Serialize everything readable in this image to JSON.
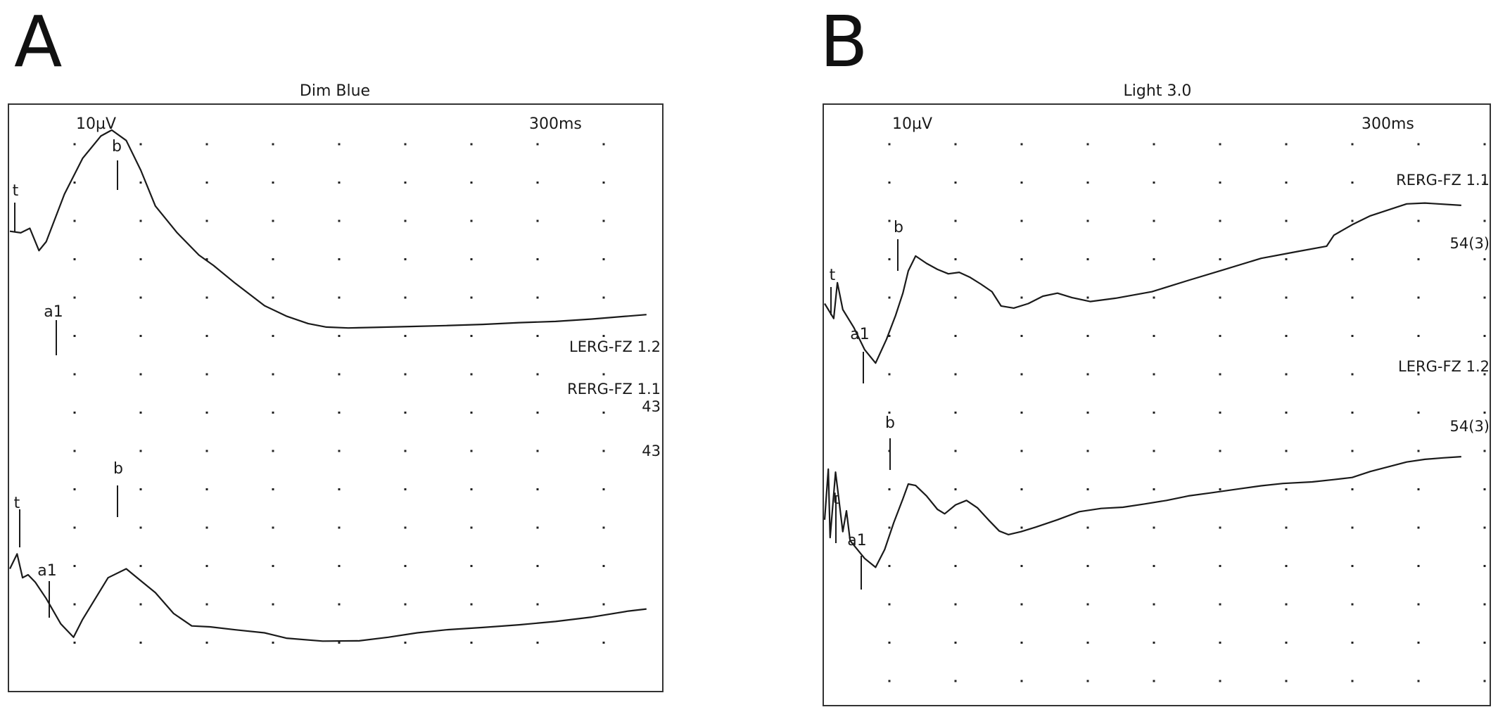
{
  "panels": {
    "a": {
      "letter": "A",
      "title": "Dim Blue"
    },
    "b": {
      "letter": "B",
      "title": "Light 3.0"
    }
  },
  "colors": {
    "trace": "#1a1a1a",
    "grid_dot": "#222222",
    "frame": "#333333"
  },
  "chart_data": [
    {
      "type": "line",
      "title": "Dim Blue",
      "scale_amplitude": "10µV",
      "scale_time": "300ms",
      "grid": "dotted",
      "labels": [
        "LERG-FZ 1.2",
        "RERG-FZ 1.1",
        "43",
        "43"
      ],
      "series": [
        {
          "markers": [
            "t",
            "a1",
            "b"
          ],
          "points": [
            [
              0,
              0.55
            ],
            [
              0.3,
              0.5
            ],
            [
              0.55,
              0.65
            ],
            [
              0.8,
              -0.1
            ],
            [
              1,
              0.2
            ],
            [
              1.5,
              1.8
            ],
            [
              2,
              3.0
            ],
            [
              2.5,
              3.75
            ],
            [
              2.8,
              3.95
            ],
            [
              3.2,
              3.6
            ],
            [
              3.6,
              2.6
            ],
            [
              4,
              1.4
            ],
            [
              4.6,
              0.5
            ],
            [
              5.2,
              -0.25
            ],
            [
              5.6,
              -0.6
            ],
            [
              6.2,
              -1.2
            ],
            [
              7,
              -1.95
            ],
            [
              7.6,
              -2.3
            ],
            [
              8.2,
              -2.55
            ],
            [
              8.7,
              -2.67
            ],
            [
              9.3,
              -2.7
            ],
            [
              10,
              -2.68
            ],
            [
              11,
              -2.65
            ],
            [
              12,
              -2.62
            ],
            [
              13,
              -2.58
            ],
            [
              14,
              -2.52
            ],
            [
              15,
              -2.48
            ],
            [
              16,
              -2.4
            ],
            [
              17,
              -2.3
            ],
            [
              17.5,
              -2.25
            ]
          ]
        },
        {
          "markers": [
            "t",
            "a1",
            "b"
          ],
          "points": [
            [
              0,
              -1.1
            ],
            [
              0.2,
              -0.6
            ],
            [
              0.35,
              -1.4
            ],
            [
              0.5,
              -1.3
            ],
            [
              0.7,
              -1.55
            ],
            [
              1,
              -2.1
            ],
            [
              1.4,
              -2.95
            ],
            [
              1.75,
              -3.4
            ],
            [
              2,
              -2.8
            ],
            [
              2.3,
              -2.2
            ],
            [
              2.7,
              -1.4
            ],
            [
              3.2,
              -1.1
            ],
            [
              3.6,
              -1.5
            ],
            [
              4,
              -1.9
            ],
            [
              4.5,
              -2.6
            ],
            [
              5,
              -3.02
            ],
            [
              5.5,
              -3.05
            ],
            [
              6.2,
              -3.15
            ],
            [
              7,
              -3.25
            ],
            [
              7.6,
              -3.43
            ],
            [
              8.6,
              -3.53
            ],
            [
              9.6,
              -3.52
            ],
            [
              10.4,
              -3.4
            ],
            [
              11.2,
              -3.25
            ],
            [
              12,
              -3.15
            ],
            [
              13,
              -3.07
            ],
            [
              14,
              -2.98
            ],
            [
              15,
              -2.87
            ],
            [
              16,
              -2.72
            ],
            [
              17,
              -2.52
            ],
            [
              17.5,
              -2.45
            ]
          ]
        }
      ]
    },
    {
      "type": "line",
      "title": "Light 3.0",
      "scale_amplitude": "10µV",
      "scale_time": "300ms",
      "grid": "dotted",
      "labels": [
        "RERG-FZ 1.1",
        "54(3)",
        "LERG-FZ 1.2",
        "54(3)"
      ],
      "series": [
        {
          "markers": [
            "t",
            "b",
            "a1"
          ],
          "points": [
            [
              0,
              0.2
            ],
            [
              0.25,
              -0.3
            ],
            [
              0.35,
              0.9
            ],
            [
              0.5,
              0.0
            ],
            [
              0.8,
              -0.6
            ],
            [
              1.1,
              -1.35
            ],
            [
              1.4,
              -1.8
            ],
            [
              1.7,
              -1.0
            ],
            [
              1.95,
              -0.2
            ],
            [
              2.15,
              0.55
            ],
            [
              2.3,
              1.3
            ],
            [
              2.5,
              1.8
            ],
            [
              2.8,
              1.55
            ],
            [
              3.1,
              1.35
            ],
            [
              3.4,
              1.2
            ],
            [
              3.7,
              1.25
            ],
            [
              4,
              1.08
            ],
            [
              4.3,
              0.85
            ],
            [
              4.6,
              0.6
            ],
            [
              4.85,
              0.12
            ],
            [
              5.2,
              0.05
            ],
            [
              5.6,
              0.2
            ],
            [
              6,
              0.45
            ],
            [
              6.4,
              0.55
            ],
            [
              6.8,
              0.4
            ],
            [
              7.3,
              0.27
            ],
            [
              8,
              0.38
            ],
            [
              9,
              0.6
            ],
            [
              10,
              0.98
            ],
            [
              11,
              1.35
            ],
            [
              12,
              1.72
            ],
            [
              13,
              1.95
            ],
            [
              13.8,
              2.13
            ],
            [
              14,
              2.5
            ],
            [
              14.5,
              2.85
            ],
            [
              15,
              3.15
            ],
            [
              15.5,
              3.35
            ],
            [
              16,
              3.55
            ],
            [
              16.5,
              3.58
            ],
            [
              17.5,
              3.5
            ]
          ]
        },
        {
          "markers": [
            "t",
            "b",
            "a1"
          ],
          "points": [
            [
              0,
              -1.2
            ],
            [
              0.1,
              0.5
            ],
            [
              0.15,
              -1.8
            ],
            [
              0.3,
              0.4
            ],
            [
              0.5,
              -1.6
            ],
            [
              0.6,
              -0.9
            ],
            [
              0.7,
              -1.9
            ],
            [
              0.9,
              -2.2
            ],
            [
              1.1,
              -2.5
            ],
            [
              1.4,
              -2.8
            ],
            [
              1.65,
              -2.2
            ],
            [
              1.9,
              -1.3
            ],
            [
              2.15,
              -0.5
            ],
            [
              2.3,
              0.0
            ],
            [
              2.5,
              -0.05
            ],
            [
              2.8,
              -0.4
            ],
            [
              3.1,
              -0.85
            ],
            [
              3.3,
              -1.0
            ],
            [
              3.6,
              -0.7
            ],
            [
              3.9,
              -0.55
            ],
            [
              4.2,
              -0.8
            ],
            [
              4.5,
              -1.2
            ],
            [
              4.8,
              -1.58
            ],
            [
              5.05,
              -1.7
            ],
            [
              5.4,
              -1.6
            ],
            [
              5.8,
              -1.45
            ],
            [
              6.4,
              -1.2
            ],
            [
              7,
              -0.93
            ],
            [
              7.6,
              -0.82
            ],
            [
              8.2,
              -0.78
            ],
            [
              8.8,
              -0.67
            ],
            [
              9.4,
              -0.55
            ],
            [
              10,
              -0.4
            ],
            [
              10.6,
              -0.3
            ],
            [
              11.4,
              -0.16
            ],
            [
              12,
              -0.06
            ],
            [
              12.6,
              0.02
            ],
            [
              13.4,
              0.07
            ],
            [
              14,
              0.15
            ],
            [
              14.5,
              0.22
            ],
            [
              15,
              0.42
            ],
            [
              16,
              0.74
            ],
            [
              16.5,
              0.83
            ],
            [
              17,
              0.88
            ],
            [
              17.5,
              0.92
            ]
          ]
        }
      ]
    }
  ]
}
